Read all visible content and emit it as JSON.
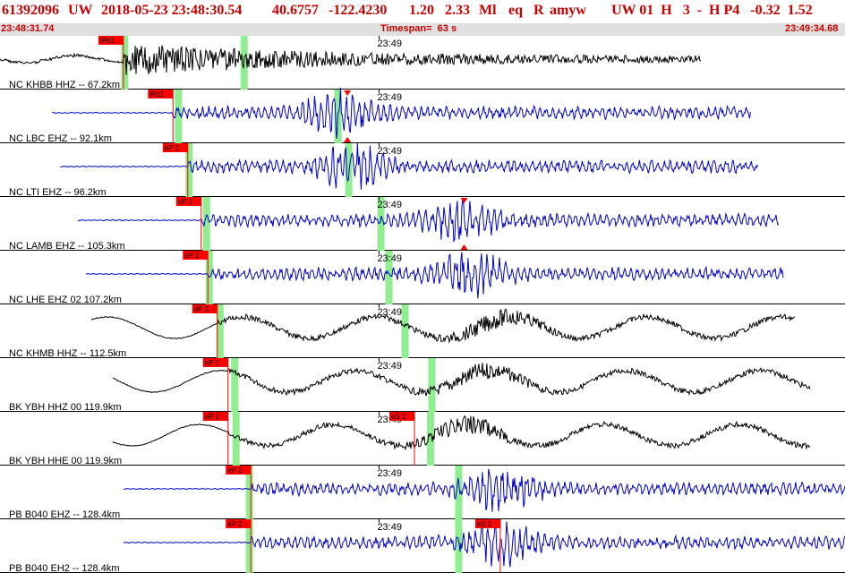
{
  "header": {
    "event_id": "61392096",
    "network": "UW",
    "datetime": "2018-05-23 23:48:30.54",
    "lat": "40.6757",
    "lon": "-122.4230",
    "depth": "1.20",
    "magnitude": "2.33",
    "mag_type": "Ml",
    "etype": "eq",
    "review": "R",
    "source": "amyw",
    "extra": "UW 01  H   3  -  H P4   -0.32  1.52",
    "start_time": "23:48:31.74",
    "timespan": "Timespan=  63 s",
    "end_time": "23:49:34.68"
  },
  "colors": {
    "header_text": "#cc0000",
    "trace_blue": "#0000cc",
    "trace_black": "#000000",
    "pick_red": "#ff0000",
    "window_green": "#90ee90"
  },
  "chart_data": {
    "type": "line",
    "x_range_s": [
      0,
      63
    ],
    "tick_label": "23:49",
    "tick_at_s": 28.26,
    "channels": [
      {
        "label": "NC KHBB HHZ -- 67.2km",
        "color": "black",
        "pick": "iPd1",
        "pick_s": 9.2,
        "s_pick": "",
        "s_pick_s": null,
        "start_s": 0,
        "end_s": 52.3,
        "green": [
          9.3,
          18.2
        ],
        "burst_s": 12.0,
        "seed": 1,
        "style": "burst_decay"
      },
      {
        "label": "NC LBC EHZ -- 92.1km",
        "color": "blue",
        "pick": "iPd1",
        "pick_s": 12.9,
        "s_pick": "S",
        "s_pick_s": 25.9,
        "start_s": 3.9,
        "end_s": 56.0,
        "green": [
          13.3,
          25.2
        ],
        "burst_s": 25.3,
        "seed": 2,
        "style": "pulse"
      },
      {
        "label": "NC LTI EHZ -- 96.2km",
        "color": "blue",
        "pick": "eP 2",
        "pick_s": 14.0,
        "s_pick": "",
        "s_pick_s": null,
        "start_s": 4.5,
        "end_s": 56.5,
        "green": [
          14.1,
          26.0
        ],
        "burst_s": 26.3,
        "seed": 3,
        "style": "pulse"
      },
      {
        "label": "NC LAMB EHZ -- 105.3km",
        "color": "blue",
        "pick": "eP 2",
        "pick_s": 15.0,
        "s_pick": "S",
        "s_pick_s": 34.6,
        "start_s": 5.8,
        "end_s": 58.1,
        "green": [
          15.4,
          28.4
        ],
        "burst_s": 34.3,
        "seed": 4,
        "style": "pulse"
      },
      {
        "label": "NC LHE EHZ 02 107.2km",
        "color": "blue",
        "pick": "eP 2",
        "pick_s": 15.5,
        "s_pick": "",
        "s_pick_s": null,
        "start_s": 6.4,
        "end_s": 58.4,
        "green": [
          15.6,
          29.0
        ],
        "burst_s": 35.1,
        "seed": 5,
        "style": "pulse"
      },
      {
        "label": "NC KHMB HHZ -- 112.5km",
        "color": "black",
        "pick": "eP 2",
        "pick_s": 16.2,
        "s_pick": "",
        "s_pick_s": null,
        "start_s": 6.8,
        "end_s": 59.3,
        "green": [
          16.4,
          30.2
        ],
        "burst_s": 37.0,
        "seed": 6,
        "style": "longwave"
      },
      {
        "label": "BK YBH HHZ 00 119.9km",
        "color": "black",
        "pick": "eP 2",
        "pick_s": 17.0,
        "s_pick": "",
        "s_pick_s": null,
        "start_s": 8.4,
        "end_s": 60.4,
        "green": [
          17.5,
          32.2
        ],
        "burst_s": 35.7,
        "seed": 7,
        "style": "longwave"
      },
      {
        "label": "BK YBH HHE 00 119.9km",
        "color": "black",
        "pick": "eP 2",
        "pick_s": 17.0,
        "s_pick": "eS 2",
        "s_pick_s": 30.9,
        "start_s": 8.4,
        "end_s": 60.4,
        "green": [
          17.6,
          32.1
        ],
        "burst_s": 34.8,
        "seed": 8,
        "style": "longwave_s"
      },
      {
        "label": "PB B040 EHZ -- 128.4km",
        "color": "blue",
        "pick": "eP 2",
        "pick_s": 18.7,
        "s_pick": "",
        "s_pick_s": null,
        "start_s": 9.2,
        "end_s": 63,
        "green": [
          18.6,
          34.2
        ],
        "burst_s": 37.4,
        "seed": 9,
        "style": "pulse"
      },
      {
        "label": "PB B040 EH2 -- 128.4km",
        "color": "blue",
        "pick": "eP 2",
        "pick_s": 18.7,
        "s_pick": "eS 2",
        "s_pick_s": 37.3,
        "start_s": 9.2,
        "end_s": 63,
        "green": [
          18.6,
          34.2
        ],
        "burst_s": 37.4,
        "seed": 10,
        "style": "pulse"
      }
    ]
  }
}
